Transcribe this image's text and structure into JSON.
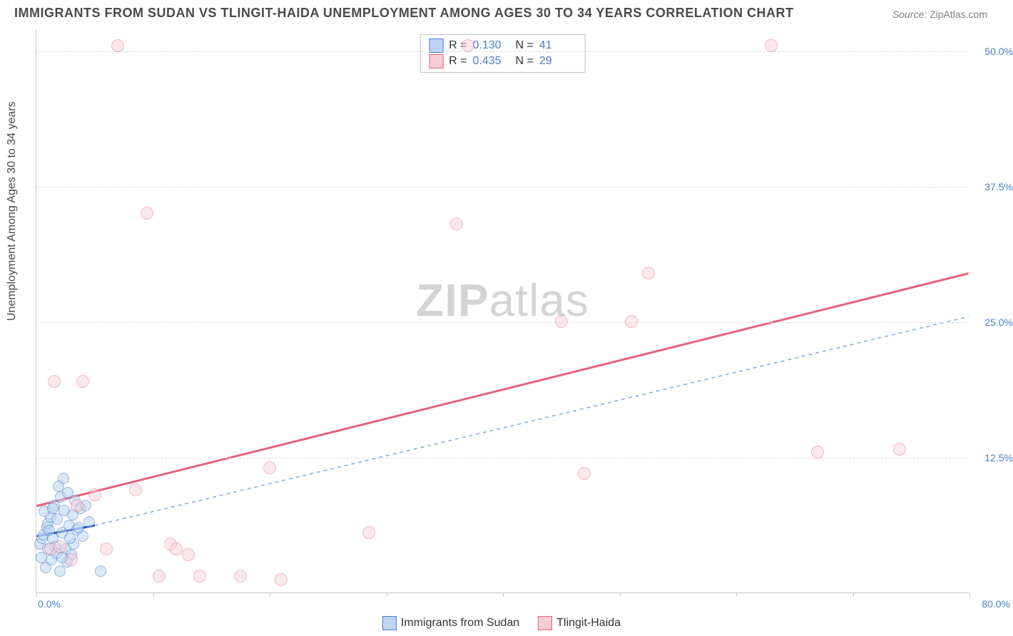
{
  "title": "IMMIGRANTS FROM SUDAN VS TLINGIT-HAIDA UNEMPLOYMENT AMONG AGES 30 TO 34 YEARS CORRELATION CHART",
  "source": {
    "label": "Source:",
    "value": "ZipAtlas.com"
  },
  "y_axis_label": "Unemployment Among Ages 30 to 34 years",
  "watermark": {
    "zip": "ZIP",
    "atlas": "atlas"
  },
  "chart": {
    "type": "scatter",
    "background_color": "#ffffff",
    "grid_color": "#dcdcdc",
    "axis_color": "#c8c8c8",
    "xlim": [
      0,
      80
    ],
    "ylim": [
      0,
      52
    ],
    "ytick_values": [
      12.5,
      25.0,
      37.5,
      50.0
    ],
    "ytick_labels": [
      "12.5%",
      "25.0%",
      "37.5%",
      "50.0%"
    ],
    "xtick_values": [
      0,
      10,
      20,
      30,
      40,
      50,
      60,
      70,
      80
    ],
    "xtick_min_label": "0.0%",
    "xtick_max_label": "80.0%",
    "tick_label_color": "#4a7ec9",
    "tick_label_fontsize": 14
  },
  "series": [
    {
      "name": "Immigrants from Sudan",
      "fill_color": "#bcd5f2",
      "stroke_color": "#4a7ec9",
      "marker_radius": 8,
      "fill_opacity": 0.55,
      "R": "0.130",
      "N": "41",
      "trend": {
        "x1": 0,
        "y1": 5.2,
        "x2": 5,
        "y2": 6.2,
        "color": "#1f4fb0",
        "width": 3,
        "dash": "none"
      },
      "trend_ext": {
        "x1": 5,
        "y1": 6.2,
        "x2": 80,
        "y2": 25.5,
        "color": "#7fa9e0",
        "width": 1.5,
        "dash": "5,5"
      },
      "points": [
        [
          0.3,
          4.5
        ],
        [
          0.5,
          5.0
        ],
        [
          0.6,
          5.3
        ],
        [
          0.8,
          2.3
        ],
        [
          0.9,
          6.0
        ],
        [
          1.0,
          6.4
        ],
        [
          1.1,
          5.7
        ],
        [
          1.2,
          7.0
        ],
        [
          1.3,
          3.0
        ],
        [
          1.4,
          5.0
        ],
        [
          1.5,
          8.0
        ],
        [
          1.6,
          4.2
        ],
        [
          1.8,
          6.8
        ],
        [
          2.0,
          2.0
        ],
        [
          2.1,
          8.8
        ],
        [
          2.2,
          5.5
        ],
        [
          2.3,
          10.5
        ],
        [
          2.4,
          7.6
        ],
        [
          2.5,
          4.0
        ],
        [
          2.7,
          9.2
        ],
        [
          2.8,
          6.2
        ],
        [
          3.0,
          3.5
        ],
        [
          3.1,
          7.2
        ],
        [
          3.3,
          8.5
        ],
        [
          3.5,
          5.8
        ],
        [
          0.4,
          3.2
        ],
        [
          0.7,
          7.5
        ],
        [
          1.7,
          3.6
        ],
        [
          1.9,
          9.8
        ],
        [
          2.6,
          2.8
        ],
        [
          3.2,
          4.5
        ],
        [
          3.6,
          6.0
        ],
        [
          3.8,
          7.8
        ],
        [
          4.0,
          5.2
        ],
        [
          4.2,
          8.0
        ],
        [
          4.5,
          6.5
        ],
        [
          1.0,
          4.0
        ],
        [
          1.4,
          7.8
        ],
        [
          2.2,
          3.2
        ],
        [
          2.9,
          5.0
        ],
        [
          5.5,
          2.0
        ]
      ]
    },
    {
      "name": "Tlingit-Haida",
      "fill_color": "#f6cdd7",
      "stroke_color": "#e5617d",
      "marker_radius": 9,
      "fill_opacity": 0.45,
      "R": "0.435",
      "N": "29",
      "trend": {
        "x1": 0,
        "y1": 8.0,
        "x2": 80,
        "y2": 29.5,
        "color": "#e5617d",
        "width": 3,
        "dash": "none"
      },
      "points": [
        [
          1.5,
          19.5
        ],
        [
          4.0,
          19.5
        ],
        [
          1.2,
          4.0
        ],
        [
          2.0,
          4.2
        ],
        [
          3.0,
          3.0
        ],
        [
          3.5,
          8.0
        ],
        [
          5.0,
          9.0
        ],
        [
          6.0,
          4.0
        ],
        [
          7.0,
          50.5
        ],
        [
          8.5,
          9.5
        ],
        [
          9.5,
          35.0
        ],
        [
          10.5,
          1.5
        ],
        [
          11.5,
          4.5
        ],
        [
          12.0,
          4.0
        ],
        [
          13.0,
          3.5
        ],
        [
          14.0,
          1.5
        ],
        [
          17.5,
          1.5
        ],
        [
          20.0,
          11.5
        ],
        [
          21.0,
          1.2
        ],
        [
          28.5,
          5.5
        ],
        [
          36.0,
          34.0
        ],
        [
          37.0,
          50.5
        ],
        [
          45.0,
          25.0
        ],
        [
          47.0,
          11.0
        ],
        [
          51.0,
          25.0
        ],
        [
          52.5,
          29.5
        ],
        [
          63.0,
          50.5
        ],
        [
          67.0,
          13.0
        ],
        [
          74.0,
          13.2
        ]
      ]
    }
  ],
  "legend_top": {
    "r_label": "R  =",
    "n_label": "N  ="
  },
  "legend_bottom": {
    "items": [
      "Immigrants from Sudan",
      "Tlingit-Haida"
    ]
  }
}
